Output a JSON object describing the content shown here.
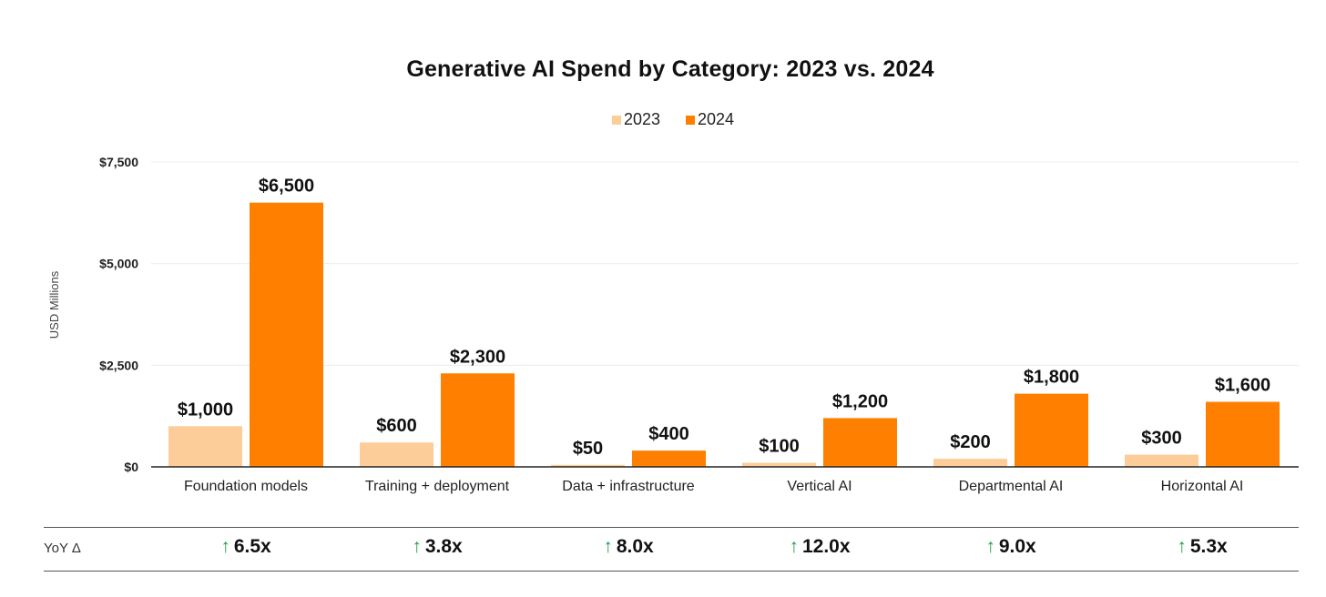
{
  "chart_data": {
    "type": "bar",
    "title": "Generative AI Spend by Category: 2023 vs. 2024",
    "ylabel": "USD Millions",
    "xlabel": "",
    "ylim": [
      0,
      7500
    ],
    "yticks": [
      0,
      2500,
      5000,
      7500
    ],
    "ytick_labels": [
      "$0",
      "$2,500",
      "$5,000",
      "$7,500"
    ],
    "grid": true,
    "legend_position": "top-center",
    "categories": [
      "Foundation models",
      "Training + deployment",
      "Data + infrastructure",
      "Vertical AI",
      "Departmental AI",
      "Horizontal AI"
    ],
    "series": [
      {
        "name": "2023",
        "color": "#fdcd99",
        "values": [
          1000,
          600,
          50,
          100,
          200,
          300
        ],
        "labels": [
          "$1,000",
          "$600",
          "$50",
          "$100",
          "$200",
          "$300"
        ]
      },
      {
        "name": "2024",
        "color": "#ff8000",
        "values": [
          6500,
          2300,
          400,
          1200,
          1800,
          1600
        ],
        "labels": [
          "$6,500",
          "$2,300",
          "$400",
          "$1,200",
          "$1,800",
          "$1,600"
        ]
      }
    ]
  },
  "yoy": {
    "label": "YoY Δ",
    "arrow": "↑",
    "arrow_color": "#1f9d48",
    "values": [
      "6.5x",
      "3.8x",
      "8.0x",
      "12.0x",
      "9.0x",
      "5.3x"
    ]
  }
}
